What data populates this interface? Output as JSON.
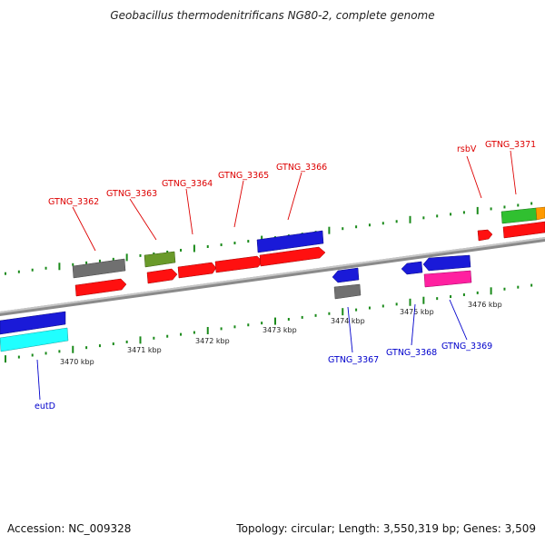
{
  "title": "Geobacillus thermodenitrificans NG80-2, complete genome",
  "footer": {
    "accession": "Accession: NC_009328",
    "summary": "Topology: circular; Length: 3,550,319 bp; Genes: 3,509"
  },
  "colors": {
    "backbone": "#8a8a8a",
    "ticks": "#1a8a1a",
    "forward_label": "#dd0000",
    "reverse_label": "#0000cc",
    "cds_red": "#ff1010",
    "cds_blue": "#1a1ad8",
    "cds_gray": "#707070",
    "cds_olive": "#6a9a2a",
    "cds_cyan": "#20ffff",
    "cds_magenta": "#ff20a0",
    "cds_green": "#30c030",
    "cds_orange": "#ff9a00"
  },
  "scale": {
    "unit": "kbp",
    "ticks": [
      "3470 kbp",
      "3471 kbp",
      "3472 kbp",
      "3473 kbp",
      "3474 kbp",
      "3475 kbp",
      "3476 kbp"
    ]
  },
  "forward_labels": [
    "GTNG_3362",
    "GTNG_3363",
    "GTNG_3364",
    "GTNG_3365",
    "GTNG_3366",
    "rsbV",
    "GTNG_3371"
  ],
  "reverse_labels": [
    "eutD",
    "GTNG_3367",
    "GTNG_3368",
    "GTNG_3369"
  ]
}
